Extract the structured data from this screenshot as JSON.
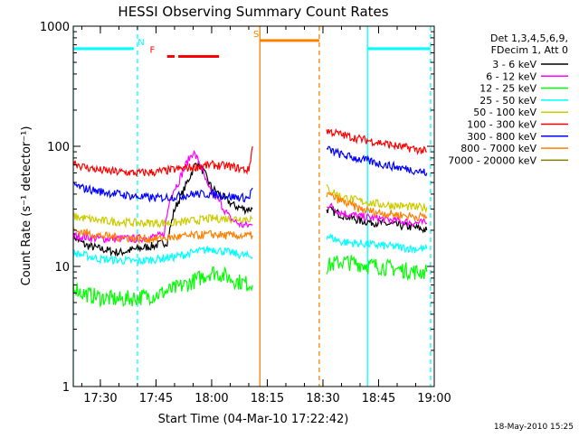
{
  "chart_data": {
    "type": "line",
    "title": "HESSI Observing Summary Count Rates",
    "xlabel": "Start Time (04-Mar-10 17:22:42)",
    "ylabel": "Count Rate (s⁻¹ detector⁻¹)",
    "y_scale": "log",
    "ylim": [
      1,
      1000
    ],
    "xlim": [
      "17:22:42",
      "19:00:00"
    ],
    "x_ticks": [
      "17:30",
      "17:45",
      "18:00",
      "18:15",
      "18:30",
      "18:45",
      "19:00"
    ],
    "y_ticks": [
      "1",
      "10",
      "100",
      "1000"
    ],
    "grid": false,
    "legend_position": "outside-right",
    "legend_header": [
      "Det 1,3,4,5,6,9,",
      "FDecim 1, Att 0"
    ],
    "footer_timestamp": "18-May-2010 15:25",
    "data_gap": [
      "18:12",
      "18:31"
    ],
    "series": [
      {
        "name": "3 - 6 keV",
        "color": "#000000",
        "points": [
          [
            "17:22:42",
            18
          ],
          [
            "17:26",
            15
          ],
          [
            "17:30",
            14
          ],
          [
            "17:35",
            13
          ],
          [
            "17:40",
            14
          ],
          [
            "17:45",
            15
          ],
          [
            "17:48",
            16
          ],
          [
            "17:50",
            30
          ],
          [
            "17:52",
            40
          ],
          [
            "17:54",
            55
          ],
          [
            "17:56",
            75
          ],
          [
            "17:58",
            60
          ],
          [
            "18:00",
            45
          ],
          [
            "18:03",
            38
          ],
          [
            "18:06",
            32
          ],
          [
            "18:09",
            30
          ],
          [
            "18:11",
            30
          ],
          [
            "18:31",
            30
          ],
          [
            "18:35",
            27
          ],
          [
            "18:40",
            24
          ],
          [
            "18:45",
            23
          ],
          [
            "18:50",
            22
          ],
          [
            "18:55",
            21
          ],
          [
            "18:58",
            20
          ]
        ]
      },
      {
        "name": "6 - 12 keV",
        "color": "#ff00ff",
        "points": [
          [
            "17:22:42",
            18
          ],
          [
            "17:30",
            17
          ],
          [
            "17:40",
            17
          ],
          [
            "17:47",
            18
          ],
          [
            "17:49",
            40
          ],
          [
            "17:51",
            50
          ],
          [
            "17:53",
            70
          ],
          [
            "17:55",
            90
          ],
          [
            "17:57",
            70
          ],
          [
            "17:59",
            45
          ],
          [
            "18:02",
            35
          ],
          [
            "18:05",
            25
          ],
          [
            "18:08",
            22
          ],
          [
            "18:11",
            22
          ],
          [
            "18:31",
            33
          ],
          [
            "18:35",
            28
          ],
          [
            "18:40",
            26
          ],
          [
            "18:45",
            25
          ],
          [
            "18:50",
            24
          ],
          [
            "18:55",
            23
          ],
          [
            "18:58",
            23
          ]
        ]
      },
      {
        "name": "12 - 25 keV",
        "color": "#00ff00",
        "points": [
          [
            "17:22:42",
            7
          ],
          [
            "17:25",
            6
          ],
          [
            "17:30",
            5.5
          ],
          [
            "17:35",
            5.3
          ],
          [
            "17:40",
            5.5
          ],
          [
            "17:45",
            5.8
          ],
          [
            "17:50",
            6.5
          ],
          [
            "17:55",
            7.5
          ],
          [
            "18:00",
            9
          ],
          [
            "18:03",
            8.5
          ],
          [
            "18:07",
            7.5
          ],
          [
            "18:11",
            7
          ],
          [
            "18:31",
            10
          ],
          [
            "18:35",
            11
          ],
          [
            "18:40",
            10.5
          ],
          [
            "18:45",
            10
          ],
          [
            "18:50",
            9.5
          ],
          [
            "18:55",
            9
          ],
          [
            "18:58",
            9
          ]
        ]
      },
      {
        "name": "25 - 50 keV",
        "color": "#00ffff",
        "points": [
          [
            "17:22:42",
            13
          ],
          [
            "17:30",
            11.5
          ],
          [
            "17:40",
            11
          ],
          [
            "17:45",
            11.5
          ],
          [
            "17:50",
            12
          ],
          [
            "17:55",
            13
          ],
          [
            "18:00",
            14
          ],
          [
            "18:05",
            13
          ],
          [
            "18:11",
            12
          ],
          [
            "18:31",
            18
          ],
          [
            "18:35",
            16
          ],
          [
            "18:40",
            15.5
          ],
          [
            "18:45",
            15
          ],
          [
            "18:50",
            14.5
          ],
          [
            "18:55",
            14
          ],
          [
            "18:58",
            14
          ]
        ]
      },
      {
        "name": "50 - 100 keV",
        "color": "#cccc00",
        "points": [
          [
            "17:22:42",
            26
          ],
          [
            "17:30",
            24
          ],
          [
            "17:40",
            23
          ],
          [
            "17:45",
            23
          ],
          [
            "17:50",
            23
          ],
          [
            "17:55",
            24
          ],
          [
            "18:00",
            25
          ],
          [
            "18:05",
            25
          ],
          [
            "18:11",
            25
          ],
          [
            "18:31",
            45
          ],
          [
            "18:35",
            38
          ],
          [
            "18:40",
            35
          ],
          [
            "18:45",
            33
          ],
          [
            "18:50",
            32
          ],
          [
            "18:55",
            31
          ],
          [
            "18:58",
            31
          ]
        ]
      },
      {
        "name": "100 - 300 keV",
        "color": "#ff0000",
        "points": [
          [
            "17:22:42",
            75
          ],
          [
            "17:25",
            68
          ],
          [
            "17:30",
            63
          ],
          [
            "17:35",
            61
          ],
          [
            "17:40",
            60
          ],
          [
            "17:45",
            61
          ],
          [
            "17:50",
            64
          ],
          [
            "17:55",
            67
          ],
          [
            "18:00",
            70
          ],
          [
            "18:05",
            68
          ],
          [
            "18:10",
            63
          ],
          [
            "18:11",
            100
          ],
          [
            "18:31",
            135
          ],
          [
            "18:35",
            125
          ],
          [
            "18:40",
            115
          ],
          [
            "18:45",
            108
          ],
          [
            "18:50",
            100
          ],
          [
            "18:55",
            95
          ],
          [
            "18:58",
            90
          ]
        ]
      },
      {
        "name": "300 - 800 keV",
        "color": "#0000ff",
        "points": [
          [
            "17:22:42",
            48
          ],
          [
            "17:25",
            45
          ],
          [
            "17:30",
            42
          ],
          [
            "17:35",
            40
          ],
          [
            "17:40",
            38
          ],
          [
            "17:45",
            37
          ],
          [
            "17:50",
            38
          ],
          [
            "17:55",
            40
          ],
          [
            "18:00",
            40
          ],
          [
            "18:05",
            38
          ],
          [
            "18:10",
            37
          ],
          [
            "18:11",
            45
          ],
          [
            "18:31",
            95
          ],
          [
            "18:35",
            85
          ],
          [
            "18:40",
            78
          ],
          [
            "18:45",
            72
          ],
          [
            "18:50",
            67
          ],
          [
            "18:55",
            63
          ],
          [
            "18:58",
            60
          ]
        ]
      },
      {
        "name": "800 - 7000 keV",
        "color": "#ff8000",
        "points": [
          [
            "17:22:42",
            20
          ],
          [
            "17:30",
            18
          ],
          [
            "17:40",
            17
          ],
          [
            "17:45",
            17
          ],
          [
            "17:50",
            17.5
          ],
          [
            "17:55",
            18
          ],
          [
            "18:00",
            18.5
          ],
          [
            "18:05",
            18
          ],
          [
            "18:11",
            18
          ],
          [
            "18:31",
            40
          ],
          [
            "18:35",
            35
          ],
          [
            "18:40",
            30
          ],
          [
            "18:45",
            28
          ],
          [
            "18:50",
            27
          ],
          [
            "18:55",
            26
          ],
          [
            "18:58",
            26
          ]
        ]
      },
      {
        "name": "7000 - 20000 keV",
        "color": "#808000",
        "points": []
      }
    ],
    "state_bars": [
      {
        "label": "N",
        "color": "#00ffff",
        "label_at": "17:41",
        "bar_y": 650,
        "segments": [
          [
            "17:22:42",
            "17:39"
          ],
          [
            "18:42",
            "18:59"
          ]
        ],
        "vlines": [
          {
            "at": "17:22:42",
            "style": "solid"
          },
          {
            "at": "17:40",
            "style": "dashed"
          },
          {
            "at": "18:42",
            "style": "solid"
          },
          {
            "at": "18:59",
            "style": "dashed"
          }
        ]
      },
      {
        "label": "F",
        "color": "#ff0000",
        "label_at": "17:44",
        "bar_y": 560,
        "segments": [
          [
            "17:48",
            "17:50"
          ],
          [
            "17:51",
            "18:02"
          ]
        ],
        "vlines": []
      },
      {
        "label": "S",
        "color": "#ff8000",
        "label_at": "18:12",
        "bar_y": 760,
        "segments": [
          [
            "18:13",
            "18:29"
          ]
        ],
        "vlines": [
          {
            "at": "18:13",
            "style": "solid"
          },
          {
            "at": "18:29",
            "style": "dashed"
          }
        ]
      }
    ]
  }
}
